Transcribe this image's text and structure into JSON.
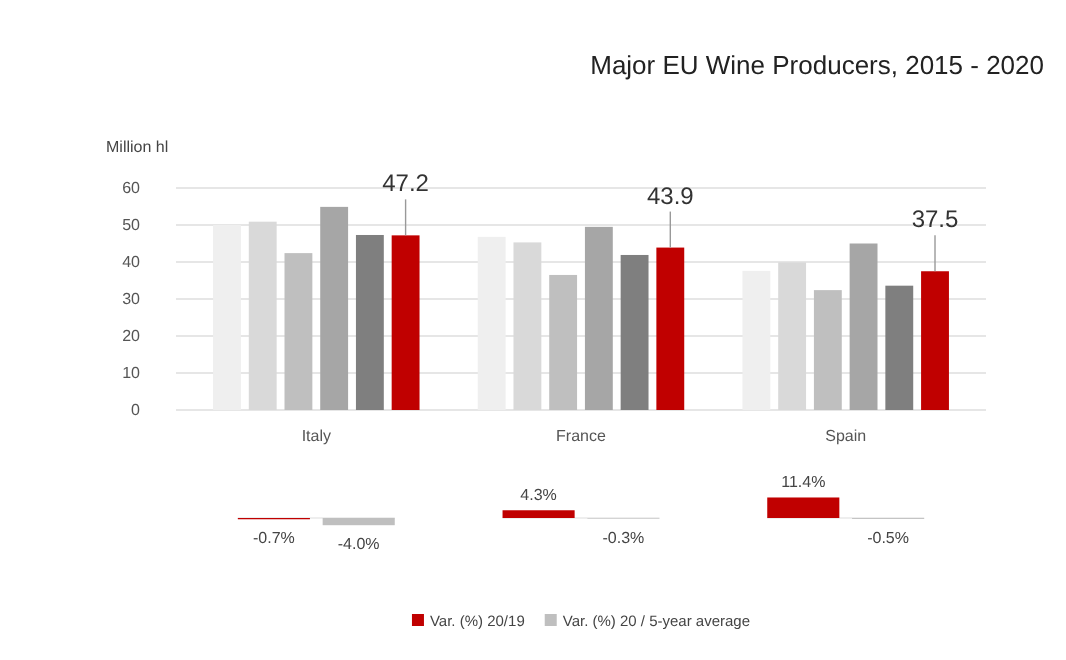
{
  "chart_data": [
    {
      "type": "bar",
      "title": "Major EU Wine Producers, 2015 - 2020",
      "ylabel": "Million hl",
      "categories": [
        "Italy",
        "France",
        "Spain"
      ],
      "series": [
        {
          "color": "#efefef",
          "values": [
            50.0,
            46.8,
            37.6
          ]
        },
        {
          "color": "#d9d9d9",
          "values": [
            50.9,
            45.3,
            39.9
          ]
        },
        {
          "color": "#bfbfbf",
          "values": [
            42.4,
            36.5,
            32.4
          ]
        },
        {
          "color": "#a6a6a6",
          "values": [
            54.9,
            49.5,
            45.0
          ]
        },
        {
          "color": "#7f7f7f",
          "values": [
            47.3,
            41.9,
            33.6
          ]
        },
        {
          "color": "#c00000",
          "values": [
            47.2,
            43.9,
            37.5
          ],
          "value_labels": [
            "47.2",
            "43.9",
            "37.5"
          ]
        }
      ],
      "ylim": [
        0,
        60
      ],
      "yticks": [
        0,
        10,
        20,
        30,
        40,
        50,
        60
      ],
      "grid": "y"
    },
    {
      "type": "bar",
      "categories": [
        null,
        null,
        null
      ],
      "legend": "bottom",
      "series": [
        {
          "name": "Var. (%) 20/19",
          "color": "#c00000",
          "values": [
            -0.7,
            4.3,
            11.4
          ],
          "value_labels": [
            "-0.7%",
            "4.3%",
            "11.4%"
          ]
        },
        {
          "name": "Var. (%) 20 / 5-year average",
          "color": "#bfbfbf",
          "values": [
            -4.0,
            -0.3,
            -0.5
          ],
          "value_labels": [
            "-4.0%",
            "-0.3%",
            "-0.5%"
          ]
        }
      ]
    }
  ]
}
